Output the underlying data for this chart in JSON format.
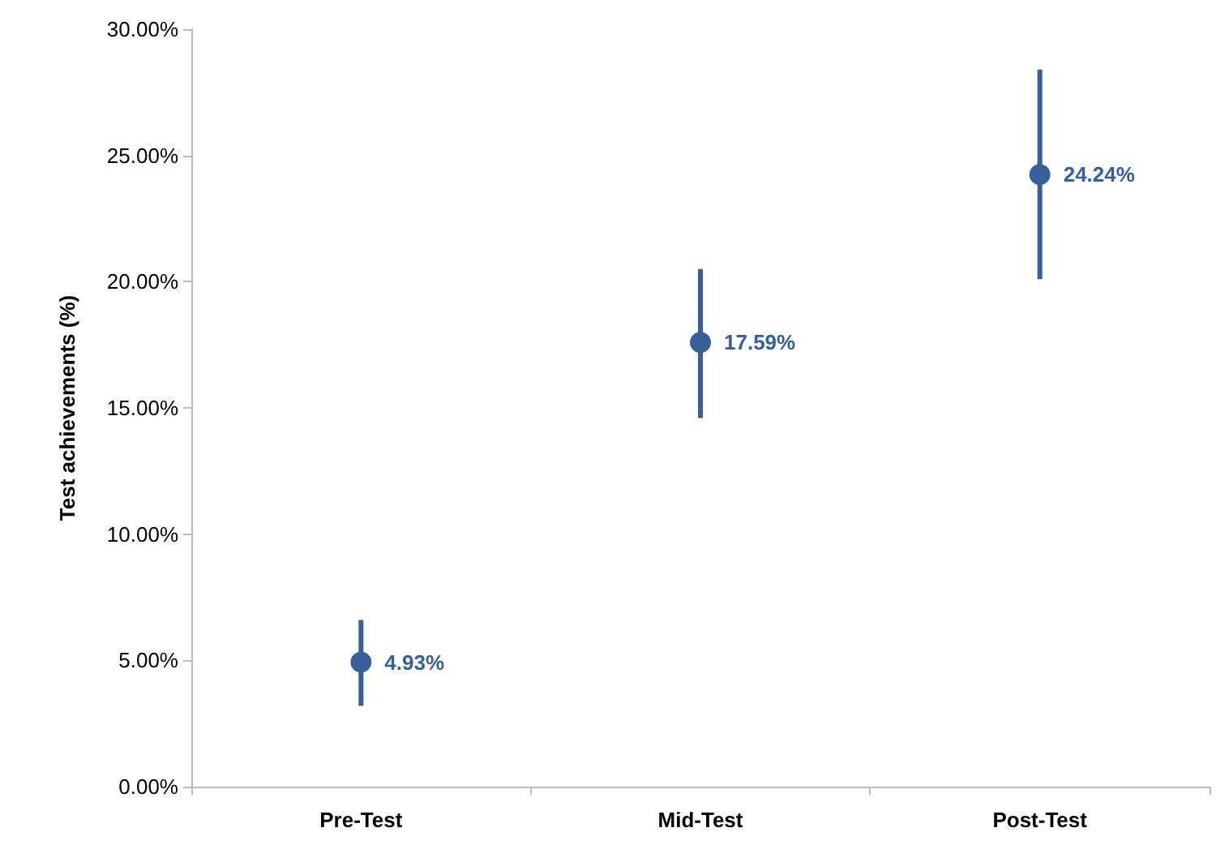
{
  "chart_data": {
    "type": "scatter",
    "ylabel": "Test achievements (%)",
    "categories": [
      "Pre-Test",
      "Mid-Test",
      "Post-Test"
    ],
    "series": [
      {
        "color": "#37609a",
        "values": [
          4.93,
          17.59,
          24.24
        ],
        "errors": [
          [
            3.2,
            6.6
          ],
          [
            14.6,
            20.5
          ],
          [
            20.1,
            28.4
          ]
        ],
        "value_labels": [
          "4.93%",
          "17.59%",
          "24.24%"
        ]
      }
    ],
    "ylim": [
      0,
      30
    ],
    "yticks": [
      {
        "value": 0,
        "label": "0.00%"
      },
      {
        "value": 5,
        "label": "5.00%"
      },
      {
        "value": 10,
        "label": "10.00%"
      },
      {
        "value": 15,
        "label": "15.00%"
      },
      {
        "value": 20,
        "label": "20.00%"
      },
      {
        "value": 25,
        "label": "25.00%"
      },
      {
        "value": 30,
        "label": "30.00%"
      }
    ],
    "grid": false,
    "marker": "circle"
  }
}
